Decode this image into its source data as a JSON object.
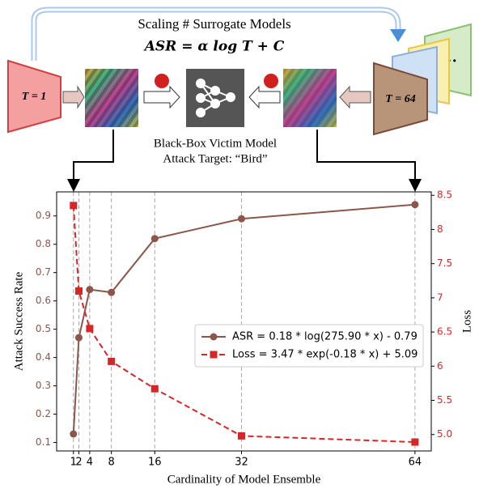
{
  "diagram": {
    "title": "Scaling # Surrogate Models",
    "formula": "ASR = α log T + C",
    "left_label": "T = 1",
    "right_label": "T = 64",
    "victim_label": "Black-Box Victim Model",
    "target_label": "Attack Target: “Bird”"
  },
  "chart_data": {
    "type": "line",
    "x_label": "Cardinality of Model Ensemble",
    "y_label": "Attack Success Rate",
    "y2_label": "Loss",
    "x": [
      1,
      2,
      4,
      8,
      16,
      32,
      64
    ],
    "xlim": [
      -2.1,
      67
    ],
    "xticks": [
      1,
      2,
      4,
      8,
      16,
      32,
      64
    ],
    "ylim": [
      0.07,
      0.985
    ],
    "yticks": [
      0.1,
      0.2,
      0.3,
      0.4,
      0.5,
      0.6,
      0.7,
      0.8,
      0.9
    ],
    "y2lim": [
      4.76,
      8.55
    ],
    "y2ticks": [
      {
        "value": 5,
        "label": "5.0"
      },
      5.5,
      6,
      {
        "value": 6,
        "label": "6.0"
      },
      6.5,
      7,
      7.5,
      8,
      8.5
    ],
    "xgrid": true,
    "legend": "center right",
    "series": [
      {
        "name": "ASR = 0.18 * log(275.90 * x) - 0.79",
        "color": "#8c564b",
        "marker": "circle",
        "dashed": false,
        "values": [
          0.13,
          0.47,
          0.64,
          0.63,
          0.82,
          0.89,
          0.94
        ]
      },
      {
        "name": "Loss = 3.47 * exp(-0.18 * x) + 5.09",
        "color": "#d62728",
        "marker": "square",
        "dashed": true,
        "axis": "y2",
        "values": [
          8.35,
          7.1,
          6.55,
          6.07,
          5.67,
          4.98,
          4.89
        ]
      }
    ]
  }
}
